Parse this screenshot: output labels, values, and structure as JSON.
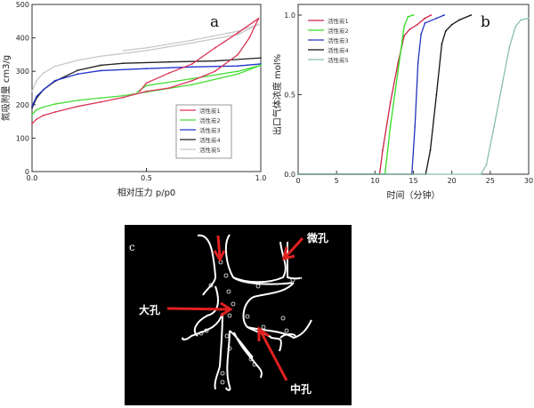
{
  "panels": {
    "a": "a",
    "b": "b",
    "c": "c"
  },
  "chart_data": [
    {
      "type": "line",
      "panel": "a",
      "xlabel": "相对压力 p/p0",
      "ylabel": "氮吸附量 cm3/g",
      "xlim": [
        0,
        1.0
      ],
      "ylim": [
        0,
        500
      ],
      "xticks": [
        "0.0",
        "0.5",
        "1.0"
      ],
      "yticks": [
        "0",
        "100",
        "200",
        "300",
        "400",
        "500"
      ],
      "grid": false,
      "legend_position": "bottom-right",
      "series": [
        {
          "name": "活性炭5",
          "color": "#c8c8c8",
          "adsorption": [
            [
              0,
              240
            ],
            [
              0.02,
              272
            ],
            [
              0.05,
              295
            ],
            [
              0.1,
              315
            ],
            [
              0.2,
              333
            ],
            [
              0.3,
              345
            ],
            [
              0.5,
              362
            ],
            [
              0.7,
              385
            ],
            [
              0.9,
              410
            ],
            [
              0.99,
              440
            ]
          ],
          "desorption": [
            [
              0.99,
              440
            ],
            [
              0.9,
              420
            ],
            [
              0.7,
              393
            ],
            [
              0.5,
              370
            ],
            [
              0.4,
              362
            ]
          ]
        },
        {
          "name": "活性炭4",
          "color": "#222222",
          "adsorption": [
            [
              0,
              190
            ],
            [
              0.02,
              220
            ],
            [
              0.05,
              245
            ],
            [
              0.1,
              270
            ],
            [
              0.2,
              303
            ],
            [
              0.3,
              318
            ],
            [
              0.4,
              324
            ],
            [
              0.6,
              328
            ],
            [
              0.8,
              331
            ],
            [
              1.0,
              340
            ]
          ],
          "desorption": []
        },
        {
          "name": "活性炭3",
          "color": "#2233cc",
          "adsorption": [
            [
              0,
              195
            ],
            [
              0.02,
              225
            ],
            [
              0.05,
              245
            ],
            [
              0.1,
              272
            ],
            [
              0.2,
              292
            ],
            [
              0.3,
              302
            ],
            [
              0.5,
              308
            ],
            [
              0.7,
              313
            ],
            [
              0.9,
              316
            ],
            [
              1.0,
              322
            ]
          ],
          "desorption": []
        },
        {
          "name": "活性炭2",
          "color": "#44dd33",
          "adsorption": [
            [
              0,
              170
            ],
            [
              0.02,
              185
            ],
            [
              0.05,
              193
            ],
            [
              0.1,
              202
            ],
            [
              0.2,
              213
            ],
            [
              0.3,
              220
            ],
            [
              0.4,
              227
            ],
            [
              0.5,
              238
            ],
            [
              0.7,
              260
            ],
            [
              0.9,
              292
            ],
            [
              1.0,
              318
            ]
          ],
          "desorption": [
            [
              1.0,
              318
            ],
            [
              0.9,
              300
            ],
            [
              0.7,
              278
            ],
            [
              0.5,
              257
            ],
            [
              0.46,
              238
            ]
          ]
        },
        {
          "name": "活性炭1",
          "color": "#dd3355",
          "adsorption": [
            [
              0,
              143
            ],
            [
              0.02,
              157
            ],
            [
              0.05,
              168
            ],
            [
              0.1,
              178
            ],
            [
              0.2,
              195
            ],
            [
              0.3,
              208
            ],
            [
              0.4,
              222
            ],
            [
              0.5,
              240
            ],
            [
              0.6,
              250
            ],
            [
              0.7,
              272
            ],
            [
              0.8,
              300
            ],
            [
              0.9,
              350
            ],
            [
              0.95,
              400
            ],
            [
              0.99,
              458
            ]
          ],
          "desorption": [
            [
              0.99,
              458
            ],
            [
              0.9,
              415
            ],
            [
              0.8,
              370
            ],
            [
              0.7,
              322
            ],
            [
              0.6,
              295
            ],
            [
              0.5,
              265
            ],
            [
              0.47,
              240
            ]
          ]
        }
      ]
    },
    {
      "type": "line",
      "panel": "b",
      "xlabel": "时间（分钟）",
      "ylabel": "出口气体浓度 mol%",
      "xlim": [
        0,
        30
      ],
      "ylim": [
        0,
        1.0
      ],
      "xticks": [
        "0",
        "5",
        "10",
        "15",
        "20",
        "25",
        "30"
      ],
      "yticks": [
        "0.0",
        "0.5",
        "1.0"
      ],
      "grid": false,
      "legend_position": "top-left",
      "series": [
        {
          "name": "活性炭1",
          "color": "#cc2244",
          "points": [
            [
              0,
              0
            ],
            [
              10.6,
              0
            ],
            [
              11,
              0.15
            ],
            [
              12,
              0.45
            ],
            [
              13,
              0.7
            ],
            [
              13.8,
              0.87
            ],
            [
              14.5,
              0.91
            ],
            [
              15.5,
              0.94
            ],
            [
              16.5,
              0.98
            ],
            [
              17.3,
              1.0
            ]
          ]
        },
        {
          "name": "活性炭2",
          "color": "#33dd22",
          "points": [
            [
              0,
              0
            ],
            [
              11.3,
              0
            ],
            [
              12,
              0.3
            ],
            [
              13,
              0.65
            ],
            [
              13.8,
              0.93
            ],
            [
              14.3,
              0.99
            ],
            [
              15,
              1.0
            ]
          ]
        },
        {
          "name": "活性炭3",
          "color": "#2233bb",
          "points": [
            [
              0,
              0
            ],
            [
              14.8,
              0
            ],
            [
              15.2,
              0.3
            ],
            [
              15.6,
              0.7
            ],
            [
              16,
              0.88
            ],
            [
              16.5,
              0.95
            ],
            [
              18,
              0.98
            ],
            [
              19,
              1.0
            ]
          ]
        },
        {
          "name": "活性炭4",
          "color": "#111111",
          "points": [
            [
              0,
              0
            ],
            [
              16.6,
              0
            ],
            [
              17.2,
              0.15
            ],
            [
              18,
              0.5
            ],
            [
              18.7,
              0.82
            ],
            [
              19.2,
              0.9
            ],
            [
              20,
              0.94
            ],
            [
              21,
              0.97
            ],
            [
              22.5,
              1.0
            ]
          ]
        },
        {
          "name": "活性炭5",
          "color": "#88c0a8",
          "points": [
            [
              0,
              0
            ],
            [
              23.8,
              0
            ],
            [
              24.5,
              0.06
            ],
            [
              25.5,
              0.3
            ],
            [
              26.5,
              0.55
            ],
            [
              27.5,
              0.8
            ],
            [
              28.3,
              0.93
            ],
            [
              29,
              0.97
            ],
            [
              30,
              0.98
            ]
          ]
        }
      ]
    }
  ],
  "diagram_c": {
    "labels": {
      "micro": "微孔",
      "macro": "大孔",
      "meso": "中孔"
    }
  }
}
